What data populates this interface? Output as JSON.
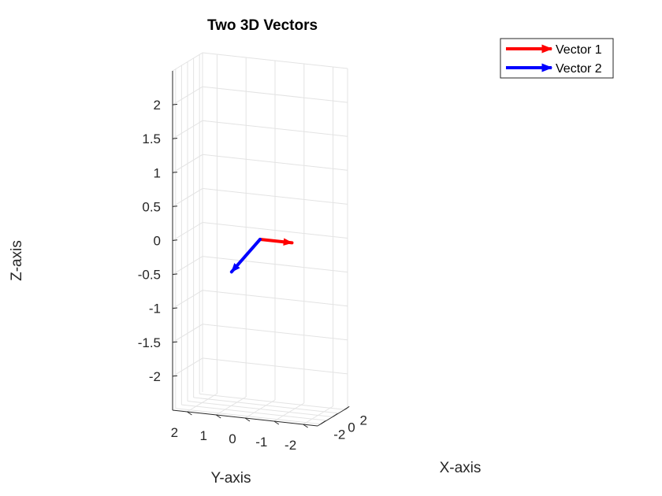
{
  "chart_data": {
    "type": "quiver3d",
    "title": "Two 3D Vectors",
    "xlabel": "X-axis",
    "ylabel": "Y-axis",
    "zlabel": "Z-axis",
    "xlim": [
      -2.5,
      2.5
    ],
    "ylim": [
      -2.5,
      2.5
    ],
    "zlim": [
      -2.5,
      2.5
    ],
    "xticks": [
      -2,
      0,
      2
    ],
    "yticks": [
      2,
      1,
      0,
      -1,
      -2
    ],
    "zticks": [
      2,
      1.5,
      1,
      0.5,
      0,
      -0.5,
      -1,
      -1.5,
      -2
    ],
    "grid": true,
    "legend_position": "outside-top-right",
    "series": [
      {
        "name": "Vector 1",
        "color": "#ff0000",
        "origin": [
          0,
          0,
          0
        ],
        "vector": [
          0,
          -1.1,
          0
        ]
      },
      {
        "name": "Vector 2",
        "color": "#0000ff",
        "origin": [
          0,
          0,
          0
        ],
        "vector": [
          -0.4,
          0.9,
          -0.5
        ]
      }
    ]
  }
}
